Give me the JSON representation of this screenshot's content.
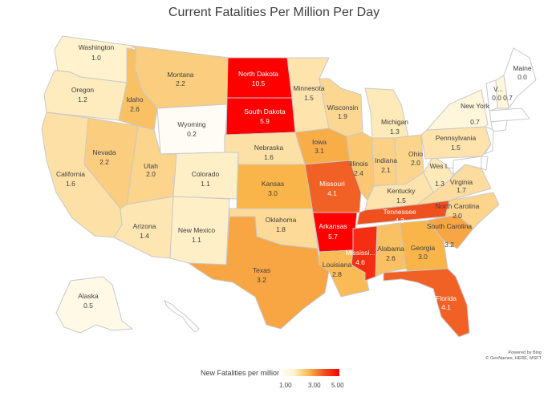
{
  "title": "Current Fatalities Per Million Per Day",
  "legend": {
    "title": "New Fatalities per million",
    "ticks": [
      "1.00",
      "3.00",
      "5.00"
    ],
    "colors": [
      "#ffffff",
      "#fff2cc",
      "#f9b54a",
      "#f0501e",
      "#ff0000"
    ]
  },
  "credit": [
    "Powered by Bing",
    "© GeoNames, HERE, MSFT"
  ],
  "states": [
    {
      "name": "Washington",
      "label": "Washington",
      "value": "1.0"
    },
    {
      "name": "Oregon",
      "label": "Oregon",
      "value": "1.2"
    },
    {
      "name": "California",
      "label": "California",
      "value": "1.6"
    },
    {
      "name": "Nevada",
      "label": "Nevada",
      "value": "2.2"
    },
    {
      "name": "Idaho",
      "label": "Idaho",
      "value": "2.6"
    },
    {
      "name": "Montana",
      "label": "Montana",
      "value": "2.2"
    },
    {
      "name": "Wyoming",
      "label": "Wyoming",
      "value": "0.2"
    },
    {
      "name": "Utah",
      "label": "Utah",
      "value": "2.0"
    },
    {
      "name": "Arizona",
      "label": "Arizona",
      "value": "1.4"
    },
    {
      "name": "Colorado",
      "label": "Colorado",
      "value": "1.1"
    },
    {
      "name": "New Mexico",
      "label": "New Mexico",
      "value": "1.1"
    },
    {
      "name": "North Dakota",
      "label": "North Dakota",
      "value": "10.5"
    },
    {
      "name": "South Dakota",
      "label": "South Dakota",
      "value": "5.9"
    },
    {
      "name": "Nebraska",
      "label": "Nebraska",
      "value": "1.6"
    },
    {
      "name": "Kansas",
      "label": "Kansas",
      "value": "3.0"
    },
    {
      "name": "Oklahoma",
      "label": "Oklahoma",
      "value": "1.8"
    },
    {
      "name": "Texas",
      "label": "Texas",
      "value": "3.2"
    },
    {
      "name": "Minnesota",
      "label": "Minnesota",
      "value": "1.5"
    },
    {
      "name": "Iowa",
      "label": "Iowa",
      "value": "3.1"
    },
    {
      "name": "Missouri",
      "label": "Missouri",
      "value": "4.1"
    },
    {
      "name": "Arkansas",
      "label": "Arkansas",
      "value": "5.7"
    },
    {
      "name": "Louisiana",
      "label": "Louisiana",
      "value": "2.8"
    },
    {
      "name": "Wisconsin",
      "label": "Wisconsin",
      "value": "1.9"
    },
    {
      "name": "Illinois",
      "label": "Illinois",
      "value": "2.4"
    },
    {
      "name": "Michigan",
      "label": "Michigan",
      "value": "1.3"
    },
    {
      "name": "Indiana",
      "label": "Indiana",
      "value": "2.1"
    },
    {
      "name": "Ohio",
      "label": "Ohio",
      "value": "2.0"
    },
    {
      "name": "Kentucky",
      "label": "Kentucky",
      "value": "1.5"
    },
    {
      "name": "Tennessee",
      "label": "Tennessee",
      "value": "4.3"
    },
    {
      "name": "Mississippi",
      "label": "Mississi...",
      "value": "4.6"
    },
    {
      "name": "Alabama",
      "label": "Alabama",
      "value": "2.6"
    },
    {
      "name": "Georgia",
      "label": "Georgia",
      "value": "3.0"
    },
    {
      "name": "Florida",
      "label": "Florida",
      "value": "4.1"
    },
    {
      "name": "South Carolina",
      "label": "South Carolina",
      "value": "3.2"
    },
    {
      "name": "North Carolina",
      "label": "North Carolina",
      "value": "2.0"
    },
    {
      "name": "Virginia",
      "label": "Virginia",
      "value": "1.7"
    },
    {
      "name": "West Virginia",
      "label": "Wes t...",
      "value": "1.3"
    },
    {
      "name": "Pennsylvania",
      "label": "Pennsylvania",
      "value": "1.5"
    },
    {
      "name": "New York",
      "label": "New York",
      "value": "0.7"
    },
    {
      "name": "Vermont",
      "label": "V...",
      "value": "0.0"
    },
    {
      "name": "New Hampshire",
      "label": "",
      "value": "0.7"
    },
    {
      "name": "Maine",
      "label": "Maine",
      "value": "0.0"
    },
    {
      "name": "Alaska",
      "label": "Alaska",
      "value": "0.5"
    },
    {
      "name": "Hawaii",
      "label": "",
      "value": ""
    },
    {
      "name": "Massachusetts",
      "label": "",
      "value": ""
    },
    {
      "name": "Connecticut",
      "label": "",
      "value": ""
    },
    {
      "name": "New Jersey",
      "label": "",
      "value": ""
    },
    {
      "name": "Maryland",
      "label": "",
      "value": ""
    },
    {
      "name": "Delaware",
      "label": "",
      "value": ""
    }
  ]
}
